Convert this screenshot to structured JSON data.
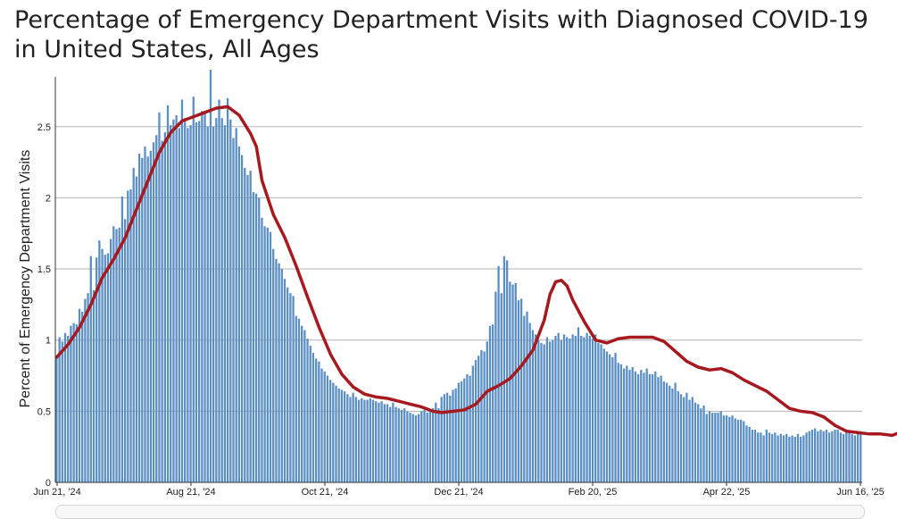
{
  "chart_data": {
    "type": "bar",
    "title": "Percentage of Emergency Department Visits with Diagnosed COVID-19 in United States, All Ages",
    "ylabel": "Percent of Emergency Department Visits",
    "xlabel": "",
    "ylim": [
      0,
      2.85
    ],
    "yticks": [
      "0",
      "0.5",
      "1",
      "1.5",
      "2",
      "2.5"
    ],
    "ytick_values": [
      0,
      0.5,
      1,
      1.5,
      2,
      2.5
    ],
    "xticks": [
      "Jun 21, '24",
      "Aug 21, '24",
      "Oct 21, '24",
      "Dec 21, '24",
      "Feb 20, '25",
      "Apr 22, '25",
      "Jun 16, '25"
    ],
    "grid": true,
    "bar_color": "#5b8fc4",
    "line_color": "#a6191f",
    "series": [
      {
        "kind": "bar",
        "values": [
          0.88,
          1.02,
          0.99,
          1.05,
          1.03,
          1.1,
          1.12,
          1.11,
          1.22,
          1.2,
          1.29,
          1.33,
          1.59,
          1.35,
          1.58,
          1.7,
          1.64,
          1.6,
          1.61,
          1.71,
          1.8,
          1.78,
          1.79,
          2.01,
          1.85,
          2.05,
          2.06,
          2.21,
          2.15,
          2.31,
          2.28,
          2.36,
          2.29,
          2.33,
          2.39,
          2.44,
          2.6,
          2.4,
          2.46,
          2.65,
          2.51,
          2.55,
          2.58,
          2.49,
          2.69,
          2.56,
          2.49,
          2.51,
          2.71,
          2.53,
          2.54,
          2.61,
          2.59,
          2.5,
          2.9,
          2.5,
          2.56,
          2.69,
          2.56,
          2.51,
          2.7,
          2.55,
          2.42,
          2.49,
          2.36,
          2.3,
          2.21,
          2.16,
          2.19,
          2.04,
          2.03,
          2.0,
          1.86,
          1.8,
          1.79,
          1.76,
          1.64,
          1.57,
          1.54,
          1.5,
          1.43,
          1.37,
          1.33,
          1.31,
          1.17,
          1.15,
          1.1,
          1.07,
          1.01,
          0.96,
          0.91,
          0.87,
          0.85,
          0.8,
          0.78,
          0.75,
          0.72,
          0.7,
          0.68,
          0.66,
          0.65,
          0.64,
          0.62,
          0.6,
          0.63,
          0.6,
          0.58,
          0.59,
          0.58,
          0.58,
          0.59,
          0.58,
          0.57,
          0.56,
          0.57,
          0.55,
          0.55,
          0.53,
          0.56,
          0.53,
          0.52,
          0.51,
          0.52,
          0.5,
          0.49,
          0.48,
          0.47,
          0.48,
          0.5,
          0.51,
          0.49,
          0.5,
          0.52,
          0.56,
          0.52,
          0.6,
          0.62,
          0.63,
          0.61,
          0.65,
          0.66,
          0.7,
          0.71,
          0.73,
          0.76,
          0.75,
          0.82,
          0.86,
          0.89,
          0.93,
          0.92,
          0.99,
          1.1,
          1.11,
          1.34,
          1.52,
          1.33,
          1.59,
          1.56,
          1.41,
          1.39,
          1.4,
          1.28,
          1.29,
          1.17,
          1.2,
          1.12,
          1.07,
          1.04,
          1.0,
          0.98,
          0.97,
          1.02,
          0.99,
          1.0,
          1.03,
          1.05,
          1.0,
          1.04,
          1.02,
          1.01,
          1.04,
          1.03,
          1.09,
          1.03,
          1.02,
          1.05,
          1.03,
          1.01,
          1.04,
          0.98,
          0.97,
          0.94,
          0.92,
          0.9,
          0.88,
          0.91,
          0.84,
          0.83,
          0.8,
          0.82,
          0.79,
          0.81,
          0.78,
          0.76,
          0.79,
          0.77,
          0.8,
          0.76,
          0.76,
          0.78,
          0.74,
          0.75,
          0.71,
          0.7,
          0.68,
          0.66,
          0.7,
          0.64,
          0.62,
          0.6,
          0.63,
          0.58,
          0.6,
          0.56,
          0.55,
          0.52,
          0.54,
          0.48,
          0.5,
          0.49,
          0.49,
          0.49,
          0.5,
          0.47,
          0.47,
          0.46,
          0.47,
          0.45,
          0.44,
          0.44,
          0.43,
          0.4,
          0.39,
          0.37,
          0.37,
          0.35,
          0.35,
          0.33,
          0.37,
          0.35,
          0.34,
          0.35,
          0.33,
          0.34,
          0.33,
          0.34,
          0.32,
          0.33,
          0.32,
          0.34,
          0.32,
          0.33,
          0.35,
          0.36,
          0.37,
          0.38,
          0.36,
          0.37,
          0.36,
          0.37,
          0.35,
          0.36,
          0.37,
          0.37,
          0.35,
          0.34,
          0.36,
          0.35,
          0.34,
          0.33,
          0.34,
          0.35
        ]
      },
      {
        "kind": "line",
        "points": [
          [
            0,
            0.88
          ],
          [
            4,
            0.97
          ],
          [
            8,
            1.09
          ],
          [
            12,
            1.25
          ],
          [
            16,
            1.44
          ],
          [
            20,
            1.57
          ],
          [
            24,
            1.72
          ],
          [
            28,
            1.92
          ],
          [
            32,
            2.12
          ],
          [
            36,
            2.32
          ],
          [
            40,
            2.46
          ],
          [
            44,
            2.54
          ],
          [
            48,
            2.57
          ],
          [
            52,
            2.6
          ],
          [
            56,
            2.63
          ],
          [
            60,
            2.64
          ],
          [
            64,
            2.58
          ],
          [
            68,
            2.45
          ],
          [
            70,
            2.36
          ],
          [
            72,
            2.12
          ],
          [
            74,
            2.0
          ],
          [
            76,
            1.88
          ],
          [
            80,
            1.72
          ],
          [
            84,
            1.52
          ],
          [
            88,
            1.3
          ],
          [
            92,
            1.09
          ],
          [
            96,
            0.9
          ],
          [
            100,
            0.76
          ],
          [
            104,
            0.67
          ],
          [
            108,
            0.62
          ],
          [
            112,
            0.6
          ],
          [
            116,
            0.59
          ],
          [
            120,
            0.57
          ],
          [
            124,
            0.55
          ],
          [
            128,
            0.53
          ],
          [
            132,
            0.5
          ],
          [
            135,
            0.49
          ],
          [
            139,
            0.5
          ],
          [
            143,
            0.51
          ],
          [
            147,
            0.55
          ],
          [
            151,
            0.64
          ],
          [
            155,
            0.68
          ],
          [
            159,
            0.73
          ],
          [
            163,
            0.82
          ],
          [
            167,
            0.93
          ],
          [
            171,
            1.14
          ],
          [
            173,
            1.32
          ],
          [
            175,
            1.41
          ],
          [
            177,
            1.42
          ],
          [
            179,
            1.38
          ],
          [
            181,
            1.28
          ],
          [
            185,
            1.13
          ],
          [
            189,
            1.0
          ],
          [
            193,
            0.98
          ],
          [
            197,
            1.01
          ],
          [
            201,
            1.02
          ],
          [
            205,
            1.02
          ],
          [
            209,
            1.02
          ],
          [
            213,
            0.99
          ],
          [
            217,
            0.92
          ],
          [
            221,
            0.85
          ],
          [
            225,
            0.81
          ],
          [
            229,
            0.79
          ],
          [
            233,
            0.8
          ],
          [
            237,
            0.77
          ],
          [
            241,
            0.72
          ],
          [
            245,
            0.68
          ],
          [
            249,
            0.64
          ],
          [
            253,
            0.58
          ],
          [
            257,
            0.52
          ],
          [
            261,
            0.5
          ],
          [
            265,
            0.49
          ],
          [
            269,
            0.46
          ],
          [
            273,
            0.4
          ],
          [
            277,
            0.36
          ],
          [
            281,
            0.35
          ],
          [
            285,
            0.34
          ],
          [
            289,
            0.34
          ],
          [
            293,
            0.33
          ],
          [
            297,
            0.36
          ],
          [
            301,
            0.36
          ],
          [
            305,
            0.36
          ],
          [
            309,
            0.36
          ],
          [
            313,
            0.34
          ]
        ]
      }
    ]
  }
}
